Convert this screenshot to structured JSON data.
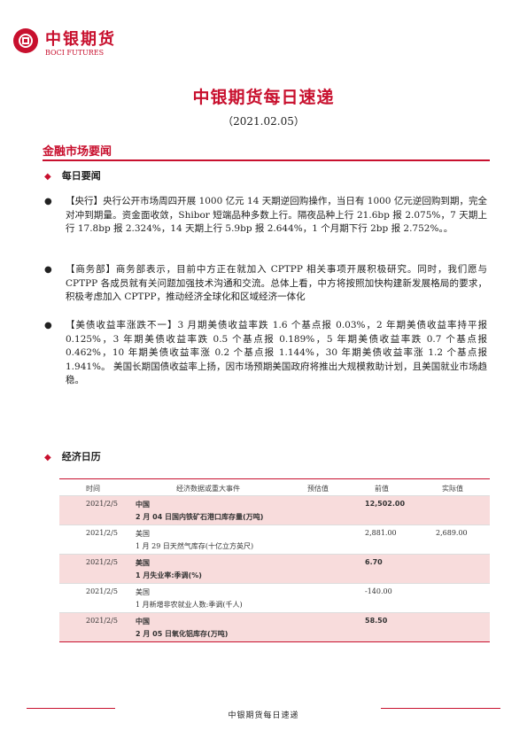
{
  "header": {
    "logo_cn": "中银期货",
    "logo_en": "BOCI FUTURES",
    "title": "中银期货每日速递",
    "date": "（2021.02.05）"
  },
  "section": {
    "title": "金融市场要闻",
    "news_heading": "每日要闻",
    "calendar_heading": "经济日历"
  },
  "news": [
    {
      "tag": "【央行】",
      "text": "央行公开市场周四开展 1000 亿元 14 天期逆回购操作，当日有 1000 亿元逆回购到期，完全对冲到期量。资金面收敛，Shibor 短端品种多数上行。隔夜品种上行 21.6bp 报 2.075%，7 天期上行 17.8bp 报 2.324%，14 天期上行 5.9bp 报 2.644%，1 个月期下行 2bp 报 2.752%。。"
    },
    {
      "tag": "【商务部】",
      "text": "商务部表示，目前中方正在就加入 CPTPP 相关事项开展积极研究。同时，我们愿与 CPTPP 各成员就有关问题加强技术沟通和交流。总体上看，中方将按照加快构建新发展格局的要求，积极考虑加入 CPTPP，推动经济全球化和区域经济一体化"
    },
    {
      "tag": "【美债收益率涨跌不一】",
      "text": "3 月期美债收益率跌 1.6 个基点报 0.03%，2 年期美债收益率持平报 0.125%，3 年期美债收益率跌 0.5 个基点报 0.189%，5 年期美债收益率跌 0.7 个基点报 0.462%，10 年期美债收益率涨 0.2 个基点报 1.144%，30 年期美债收益率涨 1.2 个基点报 1.941%。 美国长期国债收益率上扬，因市场预期美国政府将推出大规模救助计划，且美国就业市场趋稳。"
    }
  ],
  "calendar": {
    "columns": [
      "时间",
      "经济数据或重大事件",
      "预估值",
      "前值",
      "实际值"
    ],
    "rows": [
      {
        "date": "2021/2/5",
        "country": "中国",
        "event": "2 月 04 日国内铁矿石港口库存量(万吨)",
        "forecast": "",
        "previous": "12,502.00",
        "actual": ""
      },
      {
        "date": "2021/2/5",
        "country": "美国",
        "event": "1 月 29 日天然气库存(十亿立方英尺)",
        "forecast": "",
        "previous": "2,881.00",
        "actual": "2,689.00"
      },
      {
        "date": "2021/2/5",
        "country": "美国",
        "event": "1 月失业率:季调(%)",
        "forecast": "",
        "previous": "6.70",
        "actual": ""
      },
      {
        "date": "2021/2/5",
        "country": "美国",
        "event": "1 月新增非农就业人数:季调(千人)",
        "forecast": "",
        "previous": "-140.00",
        "actual": ""
      },
      {
        "date": "2021/2/5",
        "country": "中国",
        "event": "2 月 05 日氧化铝库存(万吨)",
        "forecast": "",
        "previous": "58.50",
        "actual": ""
      }
    ]
  },
  "footer": {
    "text": "中银期货每日速递"
  },
  "colors": {
    "accent": "#c8102e",
    "row_shade": "#f8dcdc"
  }
}
